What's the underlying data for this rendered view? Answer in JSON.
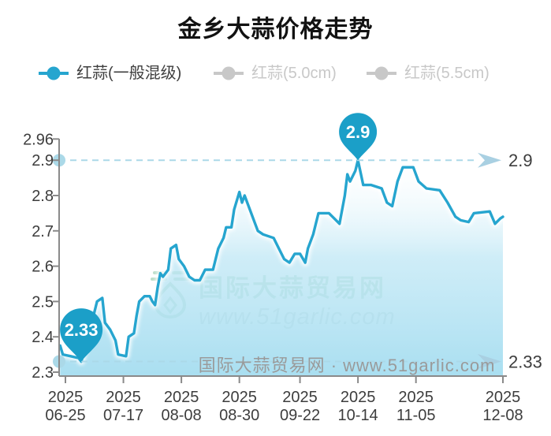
{
  "title": "金乡大蒜价格走势",
  "legend": {
    "items": [
      {
        "label": "红蒜(一般混级)",
        "color": "#26a5cf",
        "active": true
      },
      {
        "label": "红蒜(5.0cm)",
        "color": "#c8c8c8",
        "active": false
      },
      {
        "label": "红蒜(5.5cm)",
        "color": "#c8c8c8",
        "active": false
      }
    ]
  },
  "watermark": {
    "site_name": "国际大蒜贸易网",
    "site_url": "www.51garlic.com",
    "footer_text": "国际大蒜贸易网 · www.51garlic.com"
  },
  "colors": {
    "accent": "#26a5cf",
    "balloon": "#1b9fc8",
    "area_top": "#ffffff",
    "area_mid": "#bfe7f5",
    "area_bottom": "#a5ddf0",
    "dashed": "#abd9e8",
    "arrow": "#a9d0e2",
    "axis": "#8a8a8a",
    "tick_label": "#3d3d3d",
    "inactive": "#c8c8c8",
    "watermark_green": "#b9dcc7",
    "watermark_gray": "#ccd6cf",
    "footer_gray": "#9a9a9a"
  },
  "chart_data": {
    "type": "area",
    "title": "金乡大蒜价格走势",
    "series_name": "红蒜(一般混级)",
    "year": "2025",
    "xlabel": "",
    "ylabel": "",
    "ylim": [
      2.3,
      2.96
    ],
    "grid": false,
    "legend_position": "top",
    "y_ticks": [
      "2.96",
      "2.9",
      "2.8",
      "2.7",
      "2.6",
      "2.5",
      "2.4",
      "2.3"
    ],
    "x_ticks": [
      "06-25",
      "07-17",
      "08-08",
      "08-30",
      "09-22",
      "10-14",
      "11-05",
      "12-08"
    ],
    "reference_lines": [
      {
        "value": 2.9,
        "label": "2.9"
      },
      {
        "value": 2.33,
        "label": "2.33"
      }
    ],
    "max_marker": {
      "date": "10-14",
      "value": 2.9,
      "label": "2.9"
    },
    "min_marker": {
      "date": "07-01",
      "value": 2.33,
      "label": "2.33"
    },
    "points": [
      [
        "06-23",
        2.375
      ],
      [
        "06-24",
        2.35
      ],
      [
        "06-27",
        2.345
      ],
      [
        "06-30",
        2.34
      ],
      [
        "07-01",
        2.33
      ],
      [
        "07-04",
        2.41
      ],
      [
        "07-07",
        2.5
      ],
      [
        "07-09",
        2.51
      ],
      [
        "07-10",
        2.44
      ],
      [
        "07-12",
        2.42
      ],
      [
        "07-14",
        2.39
      ],
      [
        "07-15",
        2.35
      ],
      [
        "07-18",
        2.345
      ],
      [
        "07-19",
        2.4
      ],
      [
        "07-21",
        2.41
      ],
      [
        "07-22",
        2.46
      ],
      [
        "07-23",
        2.5
      ],
      [
        "07-25",
        2.515
      ],
      [
        "07-27",
        2.515
      ],
      [
        "07-28",
        2.5
      ],
      [
        "07-29",
        2.49
      ],
      [
        "07-30",
        2.54
      ],
      [
        "07-31",
        2.58
      ],
      [
        "08-01",
        2.57
      ],
      [
        "08-03",
        2.59
      ],
      [
        "08-04",
        2.65
      ],
      [
        "08-06",
        2.66
      ],
      [
        "08-07",
        2.62
      ],
      [
        "08-09",
        2.6
      ],
      [
        "08-11",
        2.57
      ],
      [
        "08-13",
        2.56
      ],
      [
        "08-15",
        2.56
      ],
      [
        "08-17",
        2.59
      ],
      [
        "08-20",
        2.59
      ],
      [
        "08-22",
        2.65
      ],
      [
        "08-24",
        2.68
      ],
      [
        "08-25",
        2.71
      ],
      [
        "08-27",
        2.71
      ],
      [
        "08-28",
        2.76
      ],
      [
        "08-30",
        2.81
      ],
      [
        "08-31",
        2.78
      ],
      [
        "09-01",
        2.8
      ],
      [
        "09-03",
        2.76
      ],
      [
        "09-05",
        2.72
      ],
      [
        "09-06",
        2.7
      ],
      [
        "09-08",
        2.69
      ],
      [
        "09-12",
        2.68
      ],
      [
        "09-14",
        2.65
      ],
      [
        "09-16",
        2.62
      ],
      [
        "09-18",
        2.61
      ],
      [
        "09-20",
        2.635
      ],
      [
        "09-22",
        2.635
      ],
      [
        "09-24",
        2.61
      ],
      [
        "09-25",
        2.65
      ],
      [
        "09-27",
        2.69
      ],
      [
        "09-29",
        2.75
      ],
      [
        "10-03",
        2.75
      ],
      [
        "10-05",
        2.735
      ],
      [
        "10-07",
        2.72
      ],
      [
        "10-09",
        2.8
      ],
      [
        "10-10",
        2.86
      ],
      [
        "10-11",
        2.84
      ],
      [
        "10-13",
        2.87
      ],
      [
        "10-14",
        2.9
      ],
      [
        "10-16",
        2.83
      ],
      [
        "10-19",
        2.83
      ],
      [
        "10-23",
        2.82
      ],
      [
        "10-25",
        2.78
      ],
      [
        "10-27",
        2.77
      ],
      [
        "10-29",
        2.84
      ],
      [
        "10-31",
        2.88
      ],
      [
        "11-04",
        2.88
      ],
      [
        "11-06",
        2.84
      ],
      [
        "11-09",
        2.82
      ],
      [
        "11-14",
        2.815
      ],
      [
        "11-17",
        2.78
      ],
      [
        "11-20",
        2.74
      ],
      [
        "11-22",
        2.73
      ],
      [
        "11-25",
        2.725
      ],
      [
        "11-27",
        2.75
      ],
      [
        "12-03",
        2.755
      ],
      [
        "12-05",
        2.72
      ],
      [
        "12-07",
        2.735
      ],
      [
        "12-08",
        2.74
      ]
    ]
  }
}
